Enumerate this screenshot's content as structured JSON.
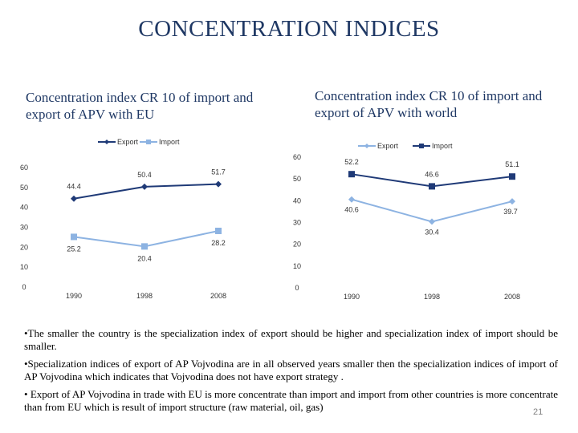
{
  "slide": {
    "title": "CONCENTRATION INDICES",
    "page_number": "21"
  },
  "chart_data": [
    {
      "type": "line",
      "title": "Concentration index CR 10 of import and export of APV with EU",
      "categories": [
        "1990",
        "1998",
        "2008"
      ],
      "ylim": [
        0,
        60
      ],
      "yticks": [
        "0",
        "10",
        "20",
        "30",
        "40",
        "50",
        "60"
      ],
      "legend_position": "top",
      "series": [
        {
          "name": "Export",
          "values": [
            44.4,
            50.4,
            51.7
          ],
          "labels": [
            "44.4",
            "50.4",
            "51.7"
          ],
          "color": "#1f3a77",
          "marker": "diamond"
        },
        {
          "name": "Import",
          "values": [
            25.2,
            20.4,
            28.2
          ],
          "labels": [
            "25.2",
            "20.4",
            "28.2"
          ],
          "color": "#8db3e2",
          "marker": "square"
        }
      ]
    },
    {
      "type": "line",
      "title": "Concentration index CR 10 of import and export of APV with world",
      "categories": [
        "1990",
        "1998",
        "2008"
      ],
      "ylim": [
        0,
        60
      ],
      "yticks": [
        "0",
        "10",
        "20",
        "30",
        "40",
        "50",
        "60"
      ],
      "legend_position": "top",
      "series": [
        {
          "name": "Export",
          "values": [
            40.6,
            30.4,
            39.7
          ],
          "labels": [
            "40.6",
            "30.4",
            "39.7"
          ],
          "color": "#8db3e2",
          "marker": "diamond"
        },
        {
          "name": "Import",
          "values": [
            52.2,
            46.6,
            51.1
          ],
          "labels": [
            "52.2",
            "46.6",
            "51.1"
          ],
          "color": "#1f3a77",
          "marker": "square"
        }
      ]
    }
  ],
  "bullets": [
    "•The smaller the country is the specialization index of export should be higher and specialization index of import should be smaller.",
    "•Specialization indices of export of AP Vojvodina are in all observed years smaller then the specialization indices of import of AP Vojvodina which indicates that Vojvodina does not have export strategy .",
    "• Export of AP Vojvodina in trade with EU is more concentrate than import and import from other countries is more concentrate than from EU which is result of import structure (raw material, oil, gas)"
  ]
}
